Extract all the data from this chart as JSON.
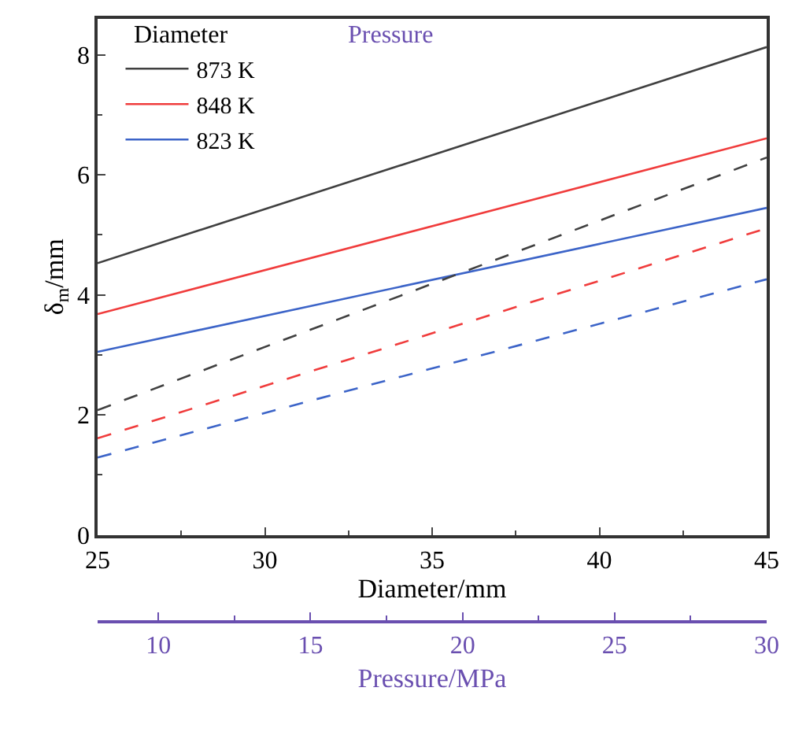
{
  "chart_data": {
    "type": "line",
    "xlabel": "Diameter/mm",
    "ylabel": "δ$_{m}$/mm",
    "x2label": "Pressure/MPa",
    "xlim": [
      25,
      45
    ],
    "xticks": [
      25,
      30,
      35,
      40,
      45
    ],
    "ylim": [
      0,
      8.6
    ],
    "yticks": [
      0,
      2,
      4,
      6,
      8
    ],
    "x2lim": [
      8,
      30
    ],
    "x2ticks": [
      10,
      15,
      20,
      25,
      30
    ],
    "series": [
      {
        "name": "873 K",
        "color": "#404040",
        "x": [
          25,
          45
        ],
        "values": [
          4.53,
          8.13
        ],
        "line_style": "solid"
      },
      {
        "name": "848 K",
        "color": "#f03c3c",
        "x": [
          25,
          45
        ],
        "values": [
          3.68,
          6.61
        ],
        "line_style": "solid"
      },
      {
        "name": "823 K",
        "color": "#3c64c8",
        "x": [
          25,
          45
        ],
        "values": [
          3.05,
          5.45
        ],
        "line_style": "solid"
      },
      {
        "color": "#404040",
        "x": [
          8,
          30
        ],
        "values": [
          2.08,
          6.29
        ],
        "line_style": "dashed",
        "axis": "x2"
      },
      {
        "color": "#f03c3c",
        "x": [
          8,
          30
        ],
        "values": [
          1.61,
          5.11
        ],
        "line_style": "dashed",
        "axis": "x2"
      },
      {
        "color": "#3c64c8",
        "x": [
          8,
          30
        ],
        "values": [
          1.29,
          4.26
        ],
        "line_style": "dashed",
        "axis": "x2"
      }
    ],
    "annotations": [
      "Diameter",
      "Pressure"
    ],
    "legend": "top left",
    "marker": "none"
  }
}
